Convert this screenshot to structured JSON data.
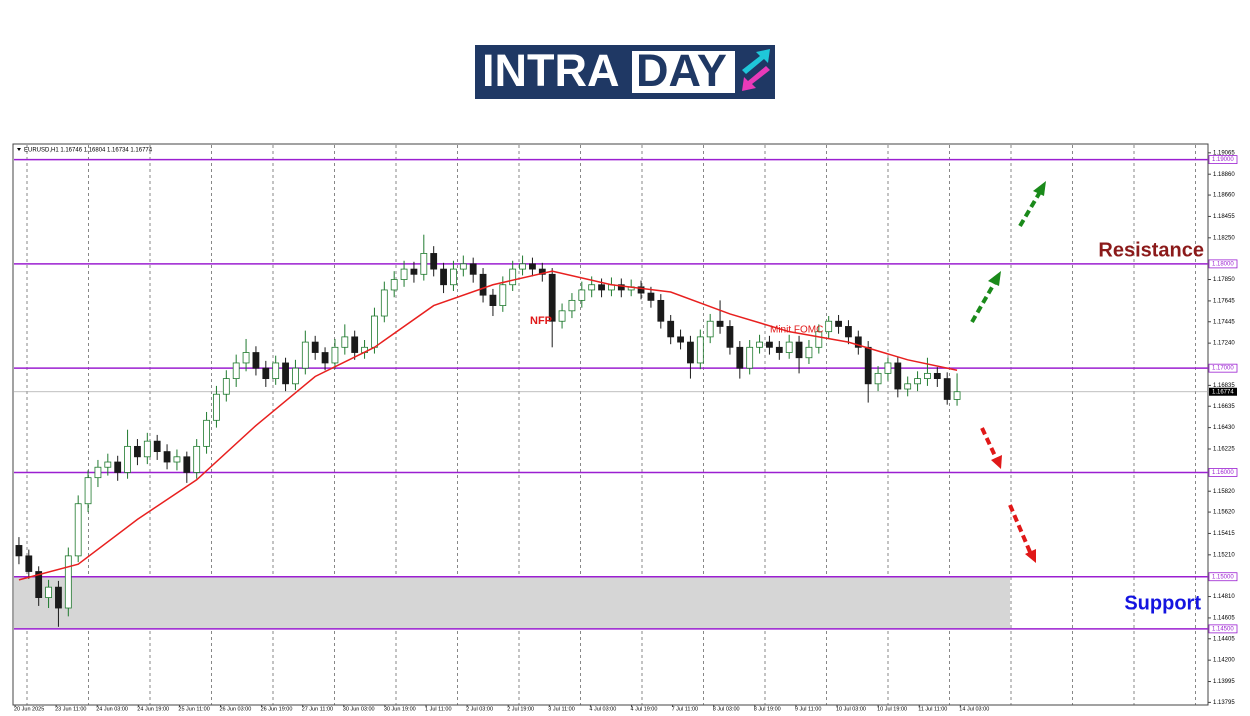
{
  "header": {
    "logo_left": "INTRA",
    "logo_right": "DAY"
  },
  "chart_data": {
    "type": "candlestick",
    "symbol_info": "EURUSD,H1  1.16746 1.16804 1.16734 1.16774",
    "up_color": "#1f7a2e",
    "down_color": "#1a1a1a",
    "candles": [
      [
        1.153,
        1.1538,
        1.1512,
        1.152
      ],
      [
        1.152,
        1.1526,
        1.1498,
        1.1505
      ],
      [
        1.1505,
        1.151,
        1.1472,
        1.148
      ],
      [
        1.148,
        1.1497,
        1.147,
        1.149
      ],
      [
        1.149,
        1.1496,
        1.1452,
        1.147
      ],
      [
        1.147,
        1.1528,
        1.1462,
        1.152
      ],
      [
        1.152,
        1.1578,
        1.1514,
        1.157
      ],
      [
        1.157,
        1.1602,
        1.1562,
        1.1595
      ],
      [
        1.1595,
        1.1612,
        1.1586,
        1.1605
      ],
      [
        1.1605,
        1.1618,
        1.1597,
        1.161
      ],
      [
        1.161,
        1.1616,
        1.1592,
        1.16
      ],
      [
        1.16,
        1.1641,
        1.1594,
        1.1625
      ],
      [
        1.1625,
        1.1632,
        1.1607,
        1.1615
      ],
      [
        1.1615,
        1.1638,
        1.1608,
        1.163
      ],
      [
        1.163,
        1.1636,
        1.1612,
        1.162
      ],
      [
        1.162,
        1.1627,
        1.1603,
        1.161
      ],
      [
        1.161,
        1.1622,
        1.1602,
        1.1615
      ],
      [
        1.1615,
        1.162,
        1.159,
        1.16
      ],
      [
        1.16,
        1.1632,
        1.1594,
        1.1625
      ],
      [
        1.1625,
        1.1658,
        1.1618,
        1.165
      ],
      [
        1.165,
        1.1683,
        1.1643,
        1.1675
      ],
      [
        1.1675,
        1.1698,
        1.1668,
        1.169
      ],
      [
        1.169,
        1.1713,
        1.1682,
        1.1705
      ],
      [
        1.1705,
        1.1728,
        1.1697,
        1.1715
      ],
      [
        1.1715,
        1.1721,
        1.1693,
        1.17
      ],
      [
        1.17,
        1.1707,
        1.1682,
        1.169
      ],
      [
        1.169,
        1.1712,
        1.1684,
        1.1705
      ],
      [
        1.1705,
        1.171,
        1.1678,
        1.1685
      ],
      [
        1.1685,
        1.1708,
        1.1679,
        1.17
      ],
      [
        1.17,
        1.1736,
        1.1694,
        1.1725
      ],
      [
        1.1725,
        1.1731,
        1.1708,
        1.1715
      ],
      [
        1.1715,
        1.172,
        1.1698,
        1.1705
      ],
      [
        1.1705,
        1.1728,
        1.1699,
        1.172
      ],
      [
        1.172,
        1.1742,
        1.1713,
        1.173
      ],
      [
        1.173,
        1.1736,
        1.1708,
        1.1715
      ],
      [
        1.1715,
        1.1727,
        1.1709,
        1.172
      ],
      [
        1.172,
        1.1758,
        1.1714,
        1.175
      ],
      [
        1.175,
        1.1783,
        1.1744,
        1.1775
      ],
      [
        1.1775,
        1.1793,
        1.1768,
        1.1785
      ],
      [
        1.1785,
        1.1803,
        1.1778,
        1.1795
      ],
      [
        1.1795,
        1.1802,
        1.1782,
        1.179
      ],
      [
        1.179,
        1.1828,
        1.1784,
        1.181
      ],
      [
        1.181,
        1.1817,
        1.1788,
        1.1795
      ],
      [
        1.1795,
        1.1801,
        1.1772,
        1.178
      ],
      [
        1.178,
        1.1803,
        1.1774,
        1.1795
      ],
      [
        1.1795,
        1.1808,
        1.1788,
        1.18
      ],
      [
        1.18,
        1.1806,
        1.1782,
        1.179
      ],
      [
        1.179,
        1.1796,
        1.1763,
        1.177
      ],
      [
        1.177,
        1.1776,
        1.175,
        1.176
      ],
      [
        1.176,
        1.1788,
        1.1754,
        1.178
      ],
      [
        1.178,
        1.1803,
        1.1774,
        1.1795
      ],
      [
        1.1795,
        1.1808,
        1.1789,
        1.18
      ],
      [
        1.18,
        1.1806,
        1.1788,
        1.1795
      ],
      [
        1.1795,
        1.1801,
        1.1783,
        1.179
      ],
      [
        1.179,
        1.1796,
        1.172,
        1.1745
      ],
      [
        1.1745,
        1.1762,
        1.1738,
        1.1755
      ],
      [
        1.1755,
        1.1772,
        1.1748,
        1.1765
      ],
      [
        1.1765,
        1.1783,
        1.1758,
        1.1775
      ],
      [
        1.1775,
        1.1788,
        1.1768,
        1.178
      ],
      [
        1.178,
        1.1786,
        1.1768,
        1.1775
      ],
      [
        1.1775,
        1.1787,
        1.1769,
        1.178
      ],
      [
        1.178,
        1.1786,
        1.1768,
        1.1775
      ],
      [
        1.1775,
        1.1785,
        1.1769,
        1.1778
      ],
      [
        1.1778,
        1.1784,
        1.1766,
        1.1772
      ],
      [
        1.1772,
        1.1778,
        1.1758,
        1.1765
      ],
      [
        1.1765,
        1.1771,
        1.1738,
        1.1745
      ],
      [
        1.1745,
        1.1751,
        1.1723,
        1.173
      ],
      [
        1.173,
        1.1737,
        1.1718,
        1.1725
      ],
      [
        1.1725,
        1.1731,
        1.169,
        1.1705
      ],
      [
        1.1705,
        1.1737,
        1.1699,
        1.173
      ],
      [
        1.173,
        1.1752,
        1.1724,
        1.1745
      ],
      [
        1.1745,
        1.1765,
        1.1733,
        1.174
      ],
      [
        1.174,
        1.1746,
        1.1713,
        1.172
      ],
      [
        1.172,
        1.1726,
        1.169,
        1.17
      ],
      [
        1.17,
        1.1727,
        1.1694,
        1.172
      ],
      [
        1.172,
        1.1732,
        1.1714,
        1.1725
      ],
      [
        1.1725,
        1.1731,
        1.1713,
        1.172
      ],
      [
        1.172,
        1.1726,
        1.1708,
        1.1715
      ],
      [
        1.1715,
        1.1732,
        1.1709,
        1.1725
      ],
      [
        1.1725,
        1.1731,
        1.1695,
        1.171
      ],
      [
        1.171,
        1.1727,
        1.1704,
        1.172
      ],
      [
        1.172,
        1.1742,
        1.1714,
        1.1735
      ],
      [
        1.1735,
        1.175,
        1.1728,
        1.1745
      ],
      [
        1.1745,
        1.1751,
        1.1733,
        1.174
      ],
      [
        1.174,
        1.1746,
        1.1723,
        1.173
      ],
      [
        1.173,
        1.1736,
        1.1713,
        1.172
      ],
      [
        1.172,
        1.1726,
        1.1667,
        1.1685
      ],
      [
        1.1685,
        1.1702,
        1.1678,
        1.1695
      ],
      [
        1.1695,
        1.171,
        1.1688,
        1.1705
      ],
      [
        1.1705,
        1.1711,
        1.1672,
        1.168
      ],
      [
        1.168,
        1.1692,
        1.1673,
        1.1685
      ],
      [
        1.1685,
        1.1697,
        1.1678,
        1.169
      ],
      [
        1.169,
        1.171,
        1.1683,
        1.1695
      ],
      [
        1.1695,
        1.1701,
        1.1682,
        1.169
      ],
      [
        1.169,
        1.1696,
        1.1665,
        1.167
      ],
      [
        1.167,
        1.1695,
        1.1664,
        1.16774
      ]
    ],
    "ma": {
      "color": "#e8201f",
      "x": [
        0,
        6,
        12,
        18,
        24,
        30,
        36,
        42,
        48,
        54,
        60,
        66,
        72,
        78,
        84,
        90,
        95
      ],
      "values": [
        1.1497,
        1.1512,
        1.1555,
        1.1593,
        1.1645,
        1.1692,
        1.172,
        1.176,
        1.178,
        1.1793,
        1.178,
        1.1773,
        1.1752,
        1.1735,
        1.1725,
        1.1708,
        1.1698
      ]
    },
    "ylim": [
      1.1377,
      1.1914
    ],
    "yticks": [
      {
        "value": 1.19065,
        "label": "1.19065"
      },
      {
        "value": 1.1886,
        "label": "1.18860"
      },
      {
        "value": 1.1866,
        "label": "1.18660"
      },
      {
        "value": 1.18455,
        "label": "1.18455"
      },
      {
        "value": 1.1825,
        "label": "1.18250"
      },
      {
        "value": 1.1785,
        "label": "1.17850"
      },
      {
        "value": 1.17645,
        "label": "1.17645"
      },
      {
        "value": 1.17445,
        "label": "1.17445"
      },
      {
        "value": 1.1724,
        "label": "1.17240"
      },
      {
        "value": 1.16835,
        "label": "1.16835"
      },
      {
        "value": 1.16635,
        "label": "1.16635"
      },
      {
        "value": 1.1643,
        "label": "1.16430"
      },
      {
        "value": 1.16225,
        "label": "1.16225"
      },
      {
        "value": 1.1582,
        "label": "1.15820"
      },
      {
        "value": 1.1562,
        "label": "1.15620"
      },
      {
        "value": 1.15415,
        "label": "1.15415"
      },
      {
        "value": 1.1521,
        "label": "1.15210"
      },
      {
        "value": 1.1481,
        "label": "1.14810"
      },
      {
        "value": 1.14605,
        "label": "1.14605"
      },
      {
        "value": 1.14405,
        "label": "1.14405"
      },
      {
        "value": 1.142,
        "label": "1.14200"
      },
      {
        "value": 1.13995,
        "label": "1.13995"
      },
      {
        "value": 1.13795,
        "label": "1.13795"
      }
    ],
    "x_labels": [
      "20 Jun 2025",
      "23 Jun 11:00",
      "24 Jun 03:00",
      "24 Jun 19:00",
      "25 Jun 11:00",
      "26 Jun 03:00",
      "26 Jun 19:00",
      "27 Jun 11:00",
      "30 Jun 03:00",
      "30 Jun 19:00",
      "1 Jul 11:00",
      "2 Jul 03:00",
      "2 Jul 19:00",
      "3 Jul 11:00",
      "4 Jul 03:00",
      "4 Jul 19:00",
      "7 Jul 11:00",
      "8 Jul 03:00",
      "8 Jul 19:00",
      "9 Jul 11:00",
      "10 Jul 03:00",
      "10 Jul 19:00",
      "11 Jul 11:00",
      "14 Jul 03:00"
    ],
    "level_color": "#9b1fd1",
    "levels": [
      {
        "value": 1.19,
        "label": "1.19000"
      },
      {
        "value": 1.18,
        "label": "1.18000"
      },
      {
        "value": 1.17,
        "label": "1.17000"
      },
      {
        "value": 1.16,
        "label": "1.16000"
      },
      {
        "value": 1.15,
        "label": "1.15000"
      },
      {
        "value": 1.145,
        "label": "1.14500"
      }
    ],
    "current_price": {
      "value": 1.16774,
      "label": "1.16774"
    },
    "support_zone": [
      1.145,
      1.15
    ],
    "annotations": [
      "NFP",
      "Minit FOMC"
    ],
    "resistance_label": "Resistance",
    "support_label": "Support"
  }
}
